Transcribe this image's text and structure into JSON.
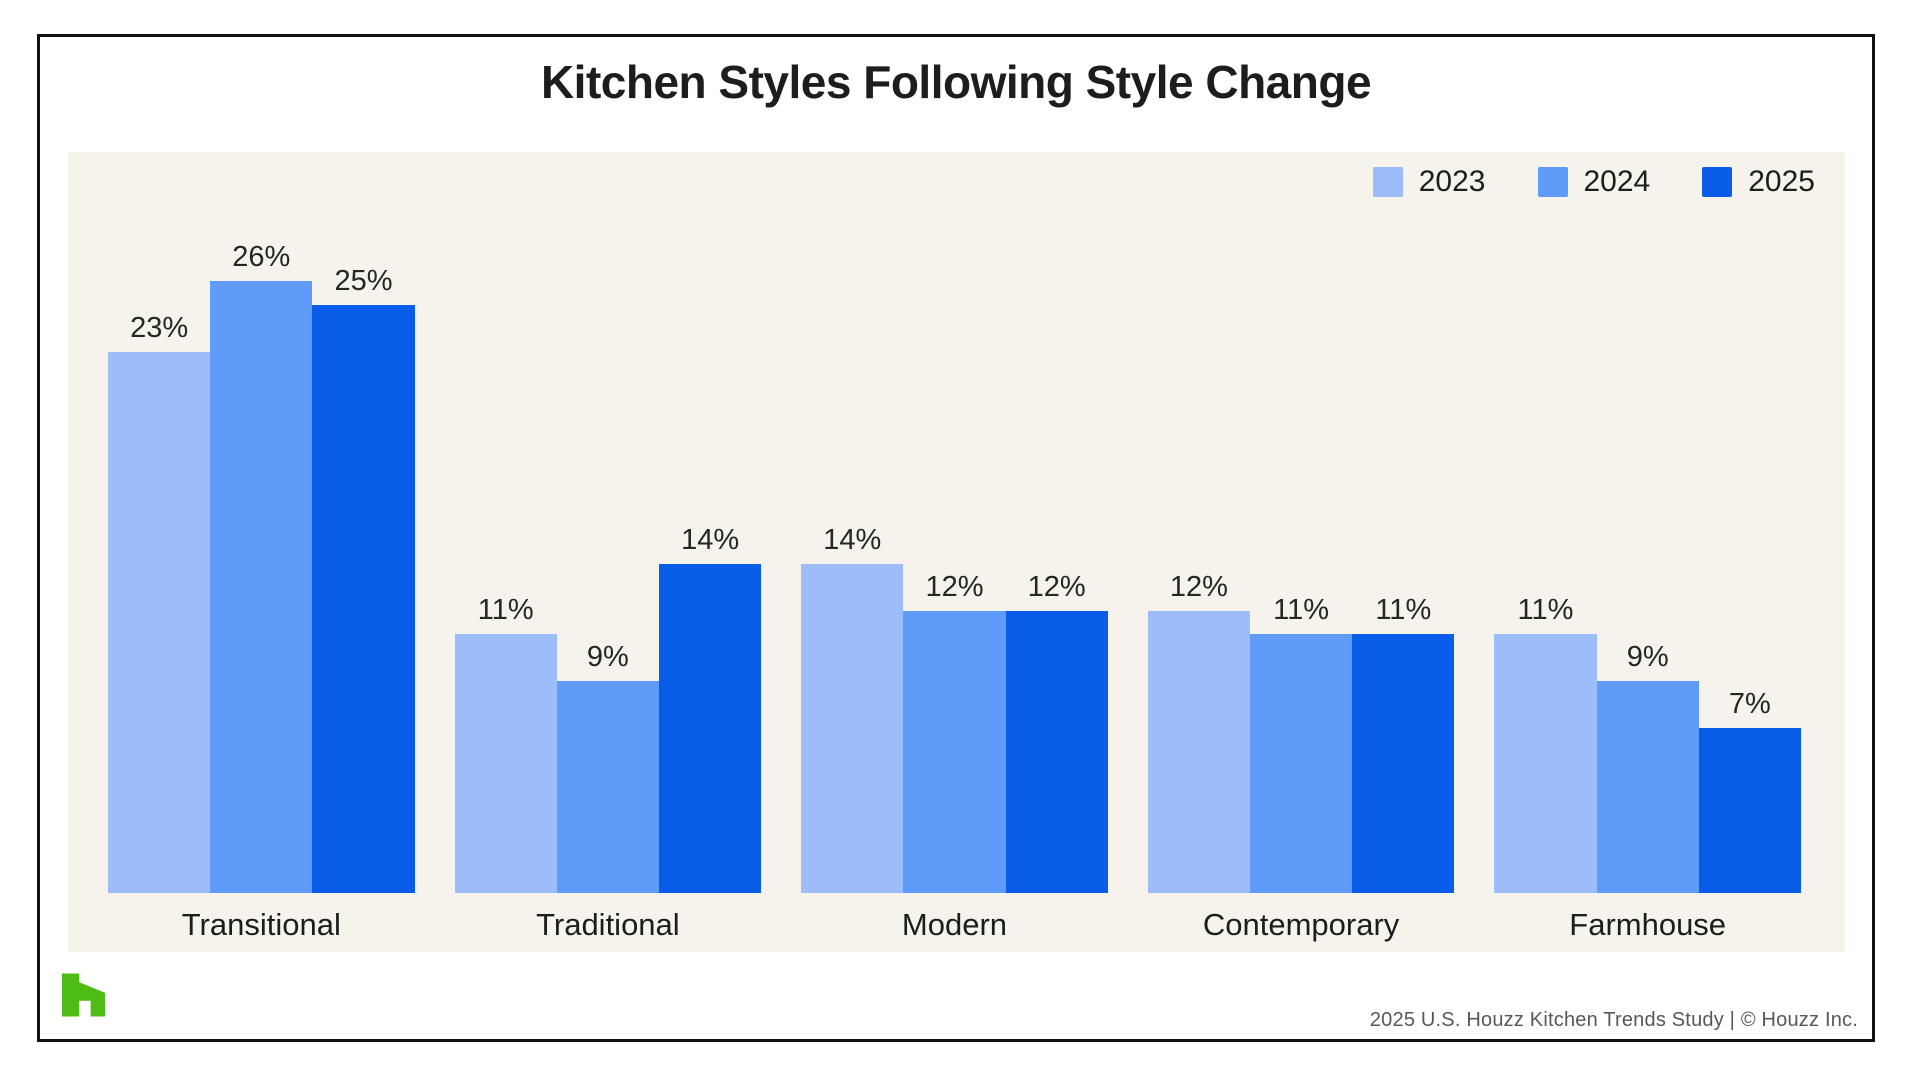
{
  "title": "Kitchen Styles Following Style Change",
  "colors": {
    "plot_background": "#F6F2EC",
    "card_border": "#111111",
    "series_2023": "#9DBDFA",
    "series_2024": "#5F9CFA",
    "series_2025": "#0A5DE8",
    "logo_green": "#4DBC15",
    "footer_text": "#57585a"
  },
  "legend": [
    {
      "label": "2023",
      "color": "#9DBDFA"
    },
    {
      "label": "2024",
      "color": "#5F9CFA"
    },
    {
      "label": "2025",
      "color": "#0A5DE8"
    }
  ],
  "chart_data": {
    "type": "bar",
    "title": "Kitchen Styles Following Style Change",
    "categories": [
      "Transitional",
      "Traditional",
      "Modern",
      "Contemporary",
      "Farmhouse"
    ],
    "series": [
      {
        "name": "2023",
        "color": "#9DBDFA",
        "values": [
          23,
          11,
          14,
          12,
          11
        ]
      },
      {
        "name": "2024",
        "color": "#5F9CFA",
        "values": [
          26,
          9,
          12,
          11,
          9
        ]
      },
      {
        "name": "2025",
        "color": "#0A5DE8",
        "values": [
          25,
          14,
          12,
          11,
          7
        ]
      }
    ],
    "value_suffix": "%",
    "xlabel": "",
    "ylabel": "",
    "ylim": [
      0,
      31.5
    ],
    "grid": false,
    "axis_ticks_visible": false,
    "legend_position": "top-right",
    "plot_background": "#F6F2EC",
    "data_labels": "above-bars"
  },
  "footer": {
    "text": "2025 U.S. Houzz Kitchen Trends Study  |  © Houzz Inc."
  },
  "logo": {
    "name": "houzz-logo",
    "color": "#4DBC15"
  }
}
